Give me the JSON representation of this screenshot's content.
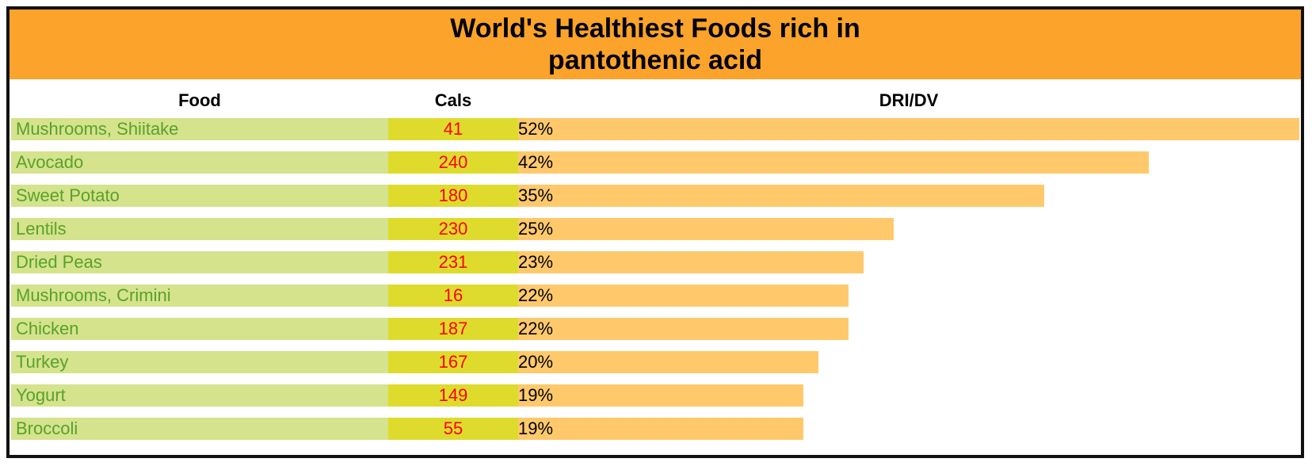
{
  "colors": {
    "title_band": "#fba32a",
    "food_bg": "#d4e38c",
    "food_text": "#5aa12b",
    "cals_bg": "#dedb2d",
    "cals_text": "#ff0000",
    "bar": "#ffc96b",
    "border": "#111111"
  },
  "chart_data": {
    "type": "table",
    "title": [
      "World's Healthiest Foods rich in",
      "pantothenic acid"
    ],
    "columns": [
      "Food",
      "Cals",
      "DRI/DV"
    ],
    "xlim": [
      0,
      52
    ],
    "rows": [
      {
        "food": "Mushrooms, Shiitake",
        "cals": "41",
        "dri_label": "52%",
        "dri": 52
      },
      {
        "food": "Avocado",
        "cals": "240",
        "dri_label": "42%",
        "dri": 42
      },
      {
        "food": "Sweet Potato",
        "cals": "180",
        "dri_label": "35%",
        "dri": 35
      },
      {
        "food": "Lentils",
        "cals": "230",
        "dri_label": "25%",
        "dri": 25
      },
      {
        "food": "Dried Peas",
        "cals": "231",
        "dri_label": "23%",
        "dri": 23
      },
      {
        "food": "Mushrooms, Crimini",
        "cals": "16",
        "dri_label": "22%",
        "dri": 22
      },
      {
        "food": "Chicken",
        "cals": "187",
        "dri_label": "22%",
        "dri": 22
      },
      {
        "food": "Turkey",
        "cals": "167",
        "dri_label": "20%",
        "dri": 20
      },
      {
        "food": "Yogurt",
        "cals": "149",
        "dri_label": "19%",
        "dri": 19
      },
      {
        "food": "Broccoli",
        "cals": "55",
        "dri_label": "19%",
        "dri": 19
      }
    ]
  }
}
